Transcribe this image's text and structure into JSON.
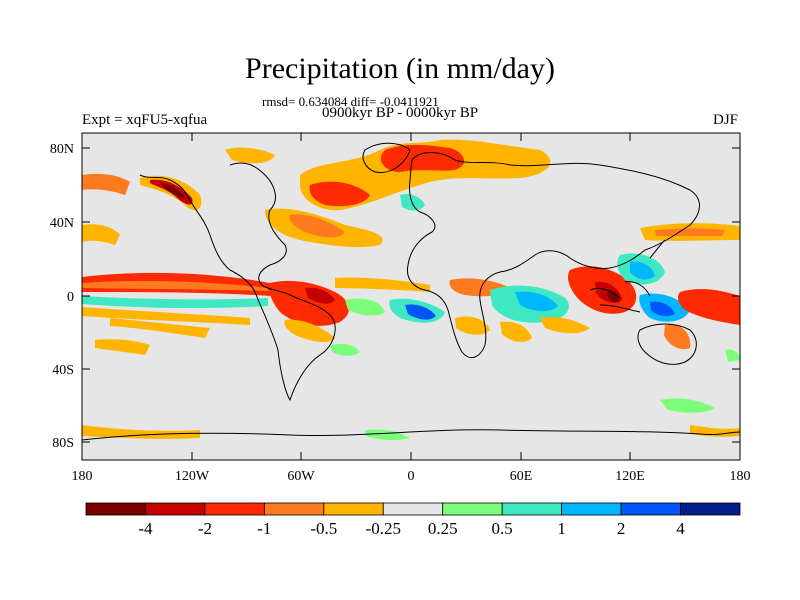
{
  "title": "Precipitation (in mm/day)",
  "stats": "rmsd= 0.634084 diff= -0.0411921",
  "period": "0900kyr BP - 0000kyr BP",
  "expt": "Expt = xqFU5-xqfua",
  "season": "DJF",
  "colors": {
    "background": "#e6e6e6",
    "coast": "#000000",
    "bins": [
      "#7a0000",
      "#c40000",
      "#ff2a00",
      "#ff7a1e",
      "#ffb400",
      "#e6e6e6",
      "#7bff7b",
      "#3de8c2",
      "#00b7ff",
      "#0055ff",
      "#001e8c"
    ]
  },
  "chart_data": {
    "type": "heatmap",
    "variable": "Precipitation difference",
    "units": "mm/day",
    "x_ticks": [
      "180",
      "120W",
      "60W",
      "0",
      "60E",
      "120E",
      "180"
    ],
    "y_ticks": [
      "80N",
      "40N",
      "0",
      "40S",
      "80S"
    ],
    "colorbar": {
      "labels": [
        "-4",
        "-2",
        "-1",
        "-0.5",
        "-0.25",
        "0.25",
        "0.5",
        "1",
        "2",
        "4"
      ]
    }
  }
}
